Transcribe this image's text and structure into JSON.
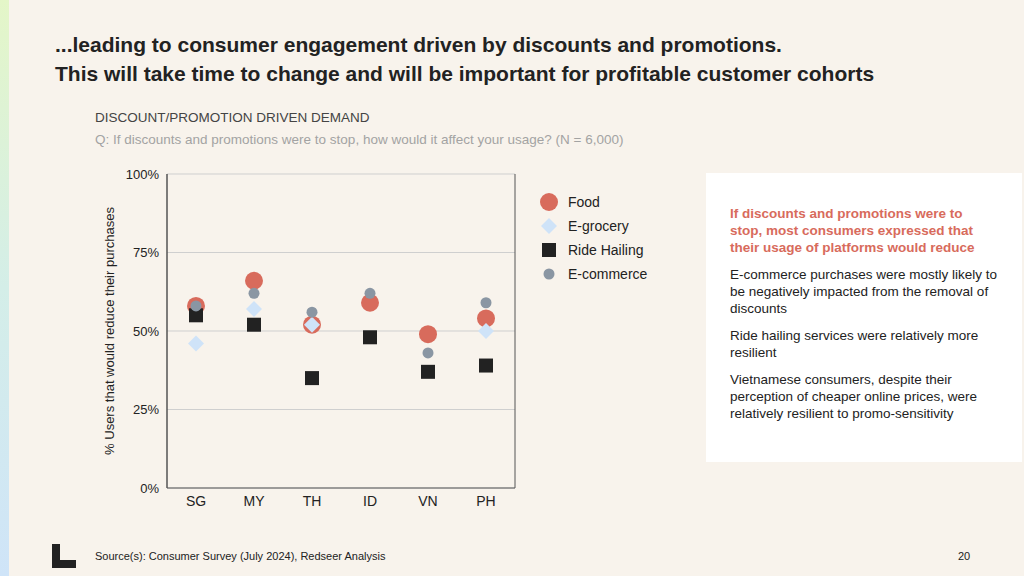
{
  "chart_data": {
    "type": "scatter",
    "title": "...leading to consumer engagement driven by discounts and promotions.\nThis will take time to change and will be important for profitable customer cohorts",
    "subtitle": "DISCOUNT/PROMOTION DRIVEN DEMAND",
    "y_label": "% Users that would reduce their purchases",
    "categories": [
      "SG",
      "MY",
      "TH",
      "ID",
      "VN",
      "PH"
    ],
    "series": [
      {
        "name": "Food",
        "color": "#d86b5c",
        "marker": "circle",
        "values": [
          58,
          66,
          52,
          59,
          49,
          54
        ]
      },
      {
        "name": "E-grocery",
        "color": "#cfe3f8",
        "marker": "diamond",
        "values": [
          46,
          57,
          52,
          null,
          null,
          50
        ]
      },
      {
        "name": "Ride Hailing",
        "color": "#222222",
        "marker": "square",
        "values": [
          55,
          52,
          35,
          48,
          37,
          39
        ]
      },
      {
        "name": "E-commerce",
        "color": "#8a96a3",
        "marker": "circle",
        "values": [
          58,
          62,
          56,
          62,
          43,
          59
        ]
      }
    ],
    "ylim": [
      0,
      100
    ],
    "yticks": [
      {
        "value": 0,
        "label": "0%"
      },
      {
        "value": 25,
        "label": "25%"
      },
      {
        "value": 50,
        "label": "50%"
      },
      {
        "value": 75,
        "label": "75%"
      },
      {
        "value": 100,
        "label": "100%"
      }
    ],
    "grid": true,
    "legend": "right",
    "annotations": {
      "question": "Q: If discounts and promotions were to stop, how would it affect your usage? (N = 6,000)",
      "callout_heading": "If discounts and promotions were to stop, most consumers expressed that their usage of platforms would reduce",
      "callout_points": [
        "E-commerce purchases were mostly likely to be negatively impacted from the removal of discounts",
        "Ride hailing services were relatively more resilient",
        "Vietnamese consumers, despite their perception of cheaper online prices, were relatively resilient to promo-sensitivity"
      ],
      "source": "Source(s): Consumer Survey (July 2024), Redseer Analysis",
      "page": "20"
    }
  }
}
